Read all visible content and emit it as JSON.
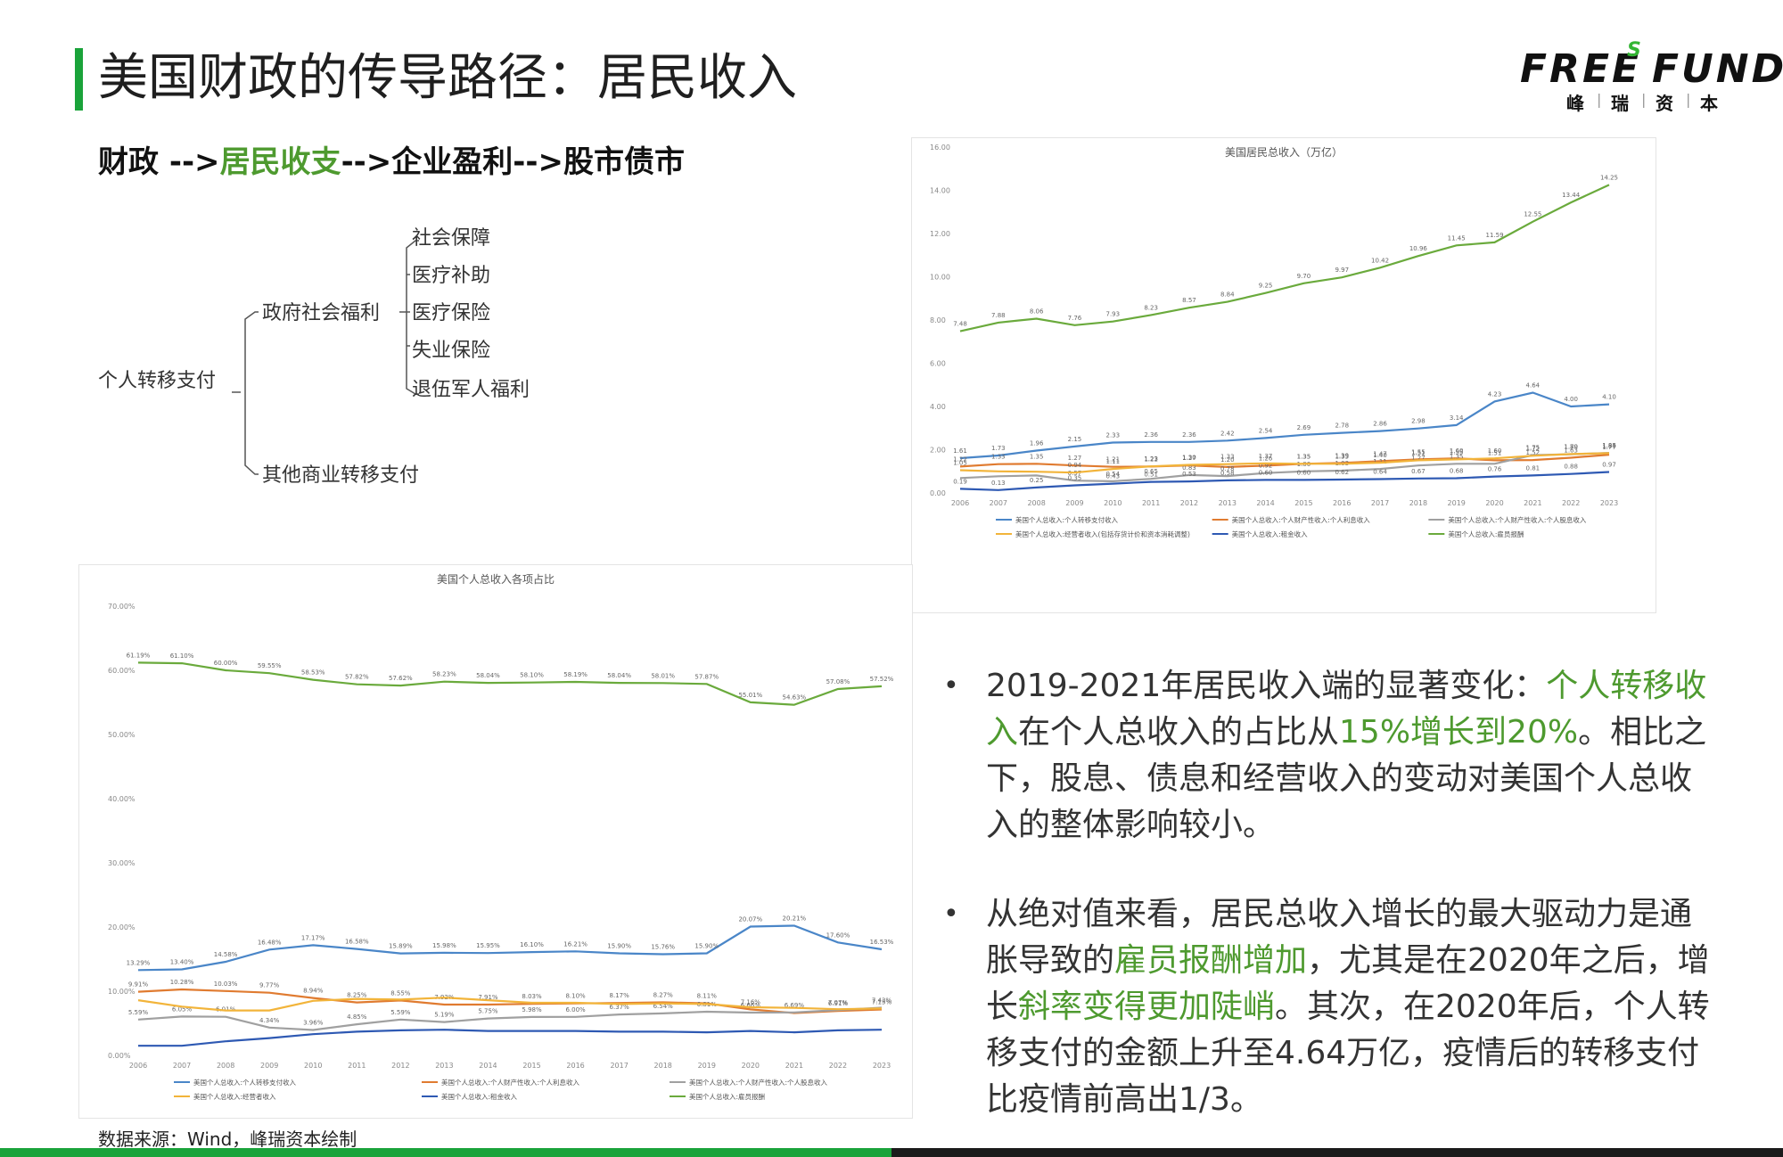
{
  "header": {
    "title": "美国财政的传导路径：居民收入",
    "subtitle_pre": "财政 -->",
    "subtitle_hl": "居民收支",
    "subtitle_post": "-->企业盈利-->股市债市"
  },
  "logo": {
    "word_left": "FREE",
    "word_sup": "S",
    "word_right": "FUND",
    "cn": [
      "峰",
      "瑞",
      "资",
      "本"
    ]
  },
  "tree": {
    "root": "个人转移支付",
    "branch1": "政府社会福利",
    "leaves": [
      "社会保障",
      "医疗补助",
      "医疗保险",
      "失业保险",
      "退伍军人福利"
    ],
    "branch2": "其他商业转移支付"
  },
  "bullets": [
    {
      "segments": [
        {
          "text": "2019-2021年居民收入端的显著变化：",
          "hl": false
        },
        {
          "text": "个人转移收入",
          "hl": true
        },
        {
          "text": "在个人总收入的占比从",
          "hl": false
        },
        {
          "text": "15%增长到20%",
          "hl": true
        },
        {
          "text": "。相比之下，股息、债息和经营收入的变动对美国个人总收入的整体影响较小。",
          "hl": false
        }
      ]
    },
    {
      "segments": [
        {
          "text": "从绝对值来看，居民总收入增长的最大驱动力是通胀导致的",
          "hl": false
        },
        {
          "text": "雇员报酬增加",
          "hl": true
        },
        {
          "text": "，尤其是在2020年之后，增长",
          "hl": false
        },
        {
          "text": "斜率变得更加陡峭",
          "hl": true
        },
        {
          "text": "。其次，在2020年后，个人转移支付的金额上升至4.64万亿，疫情后的转移支付比疫情前高出1/3。",
          "hl": false
        }
      ]
    }
  ],
  "source": "数据来源：Wind，峰瑞资本绘制",
  "chart_data": [
    {
      "type": "line",
      "title": "美国居民总收入（万亿）",
      "x": [
        "2006",
        "2007",
        "2008",
        "2009",
        "2010",
        "2011",
        "2012",
        "2013",
        "2014",
        "2015",
        "2016",
        "2017",
        "2018",
        "2019",
        "2020",
        "2021",
        "2022",
        "2023"
      ],
      "ylim": [
        0,
        16
      ],
      "yticks": [
        "0.00",
        "2.00",
        "4.00",
        "6.00",
        "8.00",
        "10.00",
        "12.00",
        "14.00",
        "16.00"
      ],
      "series": [
        {
          "name": "美国个人总收入:个人转移支付收入",
          "color": "#4a86c8",
          "values": [
            1.61,
            1.73,
            1.96,
            2.15,
            2.33,
            2.36,
            2.36,
            2.42,
            2.54,
            2.69,
            2.78,
            2.86,
            2.98,
            3.14,
            4.23,
            4.64,
            4.0,
            4.1
          ],
          "labels": [
            "1.61",
            "1.73",
            "1.96",
            "2.15",
            "2.33",
            "2.36",
            "2.36",
            "2.42",
            "2.54",
            "2.69",
            "2.78",
            "2.86",
            "2.98",
            "3.14",
            "4.23",
            "4.64",
            "4.00",
            "4.10"
          ]
        },
        {
          "name": "美国个人总收入:个人财产性收入:个人利息收入",
          "color": "#e07b30",
          "values": [
            1.22,
            1.33,
            1.35,
            1.27,
            1.21,
            1.22,
            1.27,
            1.2,
            1.26,
            1.35,
            1.39,
            1.47,
            1.55,
            1.6,
            1.51,
            1.52,
            1.63,
            1.77
          ],
          "labels": [
            "1.22",
            "1.33",
            "1.35",
            "1.27",
            "1.21",
            "1.22",
            "1.27",
            "1.20",
            "1.26",
            "1.35",
            "1.39",
            "1.47",
            "1.55",
            "1.60",
            "1.51",
            "1.52",
            "1.63",
            "1.77"
          ]
        },
        {
          "name": "美国个人总收入:个人财产性收入:个人股息收入",
          "color": "#a0a0a0",
          "values": [
            0.69,
            0.77,
            0.81,
            0.57,
            0.54,
            0.65,
            0.83,
            0.78,
            0.92,
            1.0,
            1.03,
            1.11,
            1.27,
            1.35,
            1.35,
            1.75,
            1.79,
            1.85
          ],
          "labels": [
            "",
            "",
            "",
            "0.57",
            "0.54",
            "0.65",
            "0.83",
            "0.78",
            "0.92",
            "1.00",
            "1.03",
            "1.11",
            "1.27",
            "1.35",
            "",
            "1.75",
            "1.79",
            "1.85"
          ]
        },
        {
          "name": "美国个人总收入:经营者收入(包括存货计价和资本消耗调整)",
          "color": "#f2b43a",
          "values": [
            1.05,
            1.0,
            0.98,
            0.94,
            1.11,
            1.23,
            1.3,
            1.33,
            1.37,
            1.35,
            1.35,
            1.4,
            1.51,
            1.55,
            1.6,
            1.72,
            1.8,
            1.84
          ],
          "labels": [
            "1.05",
            "",
            "",
            "0.94",
            "1.11",
            "1.23",
            "1.30",
            "1.33",
            "1.37",
            "1.35",
            "1.35",
            "1.40",
            "1.51",
            "1.55",
            "1.60",
            "1.72",
            "1.80",
            "1.84"
          ]
        },
        {
          "name": "美国个人总收入:租金收入",
          "color": "#2e59b3",
          "values": [
            0.19,
            0.13,
            0.25,
            0.35,
            0.43,
            0.51,
            0.53,
            0.58,
            0.6,
            0.6,
            0.62,
            0.64,
            0.67,
            0.68,
            0.76,
            0.81,
            0.88,
            0.97
          ],
          "labels": [
            "0.19",
            "0.13",
            "0.25",
            "0.35",
            "0.43",
            "0.51",
            "0.53",
            "0.58",
            "0.60",
            "0.60",
            "0.62",
            "0.64",
            "0.67",
            "0.68",
            "0.76",
            "0.81",
            "0.88",
            "0.97"
          ]
        },
        {
          "name": "美国个人总收入:雇员报酬",
          "color": "#6aaa3c",
          "values": [
            7.48,
            7.88,
            8.06,
            7.76,
            7.93,
            8.23,
            8.57,
            8.84,
            9.25,
            9.7,
            9.97,
            10.42,
            10.96,
            11.45,
            11.59,
            12.55,
            13.44,
            14.25
          ],
          "labels": [
            "7.48",
            "7.88",
            "8.06",
            "7.76",
            "7.93",
            "8.23",
            "8.57",
            "8.84",
            "9.25",
            "9.70",
            "9.97",
            "10.42",
            "10.96",
            "11.45",
            "11.59",
            "12.55",
            "13.44",
            "14.25"
          ]
        }
      ]
    },
    {
      "type": "line",
      "title": "美国个人总收入各项占比",
      "x": [
        "2006",
        "2007",
        "2008",
        "2009",
        "2010",
        "2011",
        "2012",
        "2013",
        "2014",
        "2015",
        "2016",
        "2017",
        "2018",
        "2019",
        "2020",
        "2021",
        "2022",
        "2023"
      ],
      "ylim": [
        0,
        70
      ],
      "yticks": [
        "0.00%",
        "10.00%",
        "20.00%",
        "30.00%",
        "40.00%",
        "50.00%",
        "60.00%",
        "70.00%"
      ],
      "series": [
        {
          "name": "美国个人总收入:个人转移支付收入",
          "color": "#4a86c8",
          "values": [
            13.29,
            13.4,
            14.58,
            16.48,
            17.17,
            16.58,
            15.89,
            15.98,
            15.95,
            16.1,
            16.21,
            15.9,
            15.76,
            15.9,
            20.07,
            20.21,
            17.6,
            16.53
          ],
          "labels": [
            "13.29%",
            "13.40%",
            "14.58%",
            "16.48%",
            "17.17%",
            "16.58%",
            "15.89%",
            "15.98%",
            "15.95%",
            "16.10%",
            "16.21%",
            "15.90%",
            "15.76%",
            "15.90%",
            "20.07%",
            "20.21%",
            "17.60%",
            "16.53%"
          ]
        },
        {
          "name": "美国个人总收入:个人财产性收入:个人利息收入",
          "color": "#e07b30",
          "values": [
            9.91,
            10.28,
            10.03,
            9.77,
            8.94,
            8.25,
            8.55,
            7.92,
            7.91,
            8.03,
            8.1,
            8.17,
            8.27,
            8.11,
            7.16,
            6.6,
            6.91,
            7.15
          ],
          "labels": [
            "9.91%",
            "10.28%",
            "10.03%",
            "9.77%",
            "8.94%",
            "8.25%",
            "8.55%",
            "7.92%",
            "7.91%",
            "8.03%",
            "8.10%",
            "8.17%",
            "8.27%",
            "8.11%",
            "7.16%",
            "",
            "6.91%",
            "7.15%"
          ]
        },
        {
          "name": "美国个人总收入:个人财产性收入:个人股息收入",
          "color": "#a0a0a0",
          "values": [
            5.59,
            6.05,
            6.01,
            4.34,
            3.96,
            4.85,
            5.59,
            5.19,
            5.75,
            5.98,
            6.0,
            6.37,
            6.54,
            6.81,
            6.66,
            6.69,
            7.07,
            7.43
          ],
          "labels": [
            "5.59%",
            "6.05%",
            "6.01%",
            "4.34%",
            "3.96%",
            "4.85%",
            "5.59%",
            "5.19%",
            "5.75%",
            "5.98%",
            "6.00%",
            "6.37%",
            "6.54%",
            "6.81%",
            "6.66%",
            "6.69%",
            "7.07%",
            "7.43%"
          ]
        },
        {
          "name": "美国个人总收入:经营者收入",
          "color": "#f2b43a",
          "values": [
            8.6,
            7.6,
            7.0,
            7.0,
            8.5,
            8.8,
            8.7,
            9.0,
            8.6,
            8.2,
            8.2,
            8.0,
            8.1,
            8.0,
            7.5,
            7.4,
            7.2,
            7.3
          ],
          "labels": [
            "",
            "",
            "",
            "",
            "",
            "",
            "",
            "",
            "",
            "",
            "",
            "",
            "",
            "",
            "",
            "",
            "",
            ""
          ]
        },
        {
          "name": "美国个人总收入:租金收入",
          "color": "#2e59b3",
          "values": [
            1.5,
            1.5,
            2.2,
            2.7,
            3.3,
            3.7,
            3.9,
            4.0,
            3.8,
            3.8,
            3.8,
            3.7,
            3.7,
            3.6,
            3.8,
            3.6,
            3.9,
            4.0
          ],
          "labels": [
            "",
            "",
            "",
            "",
            "",
            "",
            "",
            "",
            "",
            "",
            "",
            "",
            "",
            "",
            "",
            "",
            "",
            ""
          ]
        },
        {
          "name": "美国个人总收入:雇员报酬",
          "color": "#6aaa3c",
          "values": [
            61.19,
            61.1,
            60.0,
            59.55,
            58.53,
            57.82,
            57.62,
            58.23,
            58.04,
            58.1,
            58.19,
            58.04,
            58.01,
            57.87,
            55.01,
            54.63,
            57.08,
            57.52
          ],
          "labels": [
            "61.19%",
            "61.10%",
            "60.00%",
            "59.55%",
            "58.53%",
            "57.82%",
            "57.62%",
            "58.23%",
            "58.04%",
            "58.10%",
            "58.19%",
            "58.04%",
            "58.01%",
            "57.87%",
            "55.01%",
            "54.63%",
            "57.08%",
            "57.52%"
          ]
        }
      ]
    }
  ]
}
